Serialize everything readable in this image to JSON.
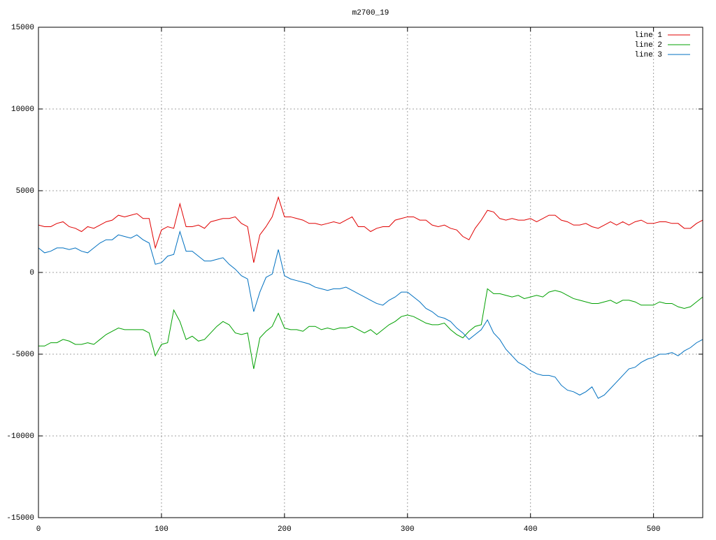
{
  "chart_data": {
    "type": "line",
    "title": "m2700_19",
    "x": [
      0,
      5,
      10,
      15,
      20,
      25,
      30,
      35,
      40,
      45,
      50,
      55,
      60,
      65,
      70,
      75,
      80,
      85,
      90,
      95,
      100,
      105,
      110,
      115,
      120,
      125,
      130,
      135,
      140,
      145,
      150,
      155,
      160,
      165,
      170,
      175,
      180,
      185,
      190,
      195,
      200,
      205,
      210,
      215,
      220,
      225,
      230,
      235,
      240,
      245,
      250,
      255,
      260,
      265,
      270,
      275,
      280,
      285,
      290,
      295,
      300,
      305,
      310,
      315,
      320,
      325,
      330,
      335,
      340,
      345,
      350,
      355,
      360,
      365,
      370,
      375,
      380,
      385,
      390,
      395,
      400,
      405,
      410,
      415,
      420,
      425,
      430,
      435,
      440,
      445,
      450,
      455,
      460,
      465,
      470,
      475,
      480,
      485,
      490,
      495,
      500,
      505,
      510,
      515,
      520,
      525,
      530,
      535,
      540
    ],
    "series": [
      {
        "name": "line 1",
        "color": "#e00000",
        "values": [
          2900,
          2800,
          2800,
          3000,
          3100,
          2800,
          2700,
          2500,
          2800,
          2700,
          2900,
          3100,
          3200,
          3500,
          3400,
          3500,
          3600,
          3300,
          3300,
          1500,
          2600,
          2800,
          2700,
          4200,
          2800,
          2800,
          2900,
          2700,
          3100,
          3200,
          3300,
          3300,
          3400,
          3000,
          2800,
          600,
          2300,
          2800,
          3400,
          4600,
          3400,
          3400,
          3300,
          3200,
          3000,
          3000,
          2900,
          3000,
          3100,
          3000,
          3200,
          3400,
          2800,
          2800,
          2500,
          2700,
          2800,
          2800,
          3200,
          3300,
          3400,
          3400,
          3200,
          3200,
          2900,
          2800,
          2900,
          2700,
          2600,
          2200,
          2000,
          2700,
          3200,
          3800,
          3700,
          3300,
          3200,
          3300,
          3200,
          3200,
          3300,
          3100,
          3300,
          3500,
          3500,
          3200,
          3100,
          2900,
          2900,
          3000,
          2800,
          2700,
          2900,
          3100,
          2900,
          3100,
          2900,
          3100,
          3200,
          3000,
          3000,
          3100,
          3100,
          3000,
          3000,
          2700,
          2700,
          3000,
          3200
        ]
      },
      {
        "name": "line 2",
        "color": "#00a000",
        "values": [
          -4500,
          -4500,
          -4300,
          -4300,
          -4100,
          -4200,
          -4400,
          -4400,
          -4300,
          -4400,
          -4100,
          -3800,
          -3600,
          -3400,
          -3500,
          -3500,
          -3500,
          -3500,
          -3700,
          -5100,
          -4400,
          -4300,
          -2300,
          -3000,
          -4100,
          -3900,
          -4200,
          -4100,
          -3700,
          -3300,
          -3000,
          -3200,
          -3700,
          -3800,
          -3700,
          -5900,
          -4000,
          -3600,
          -3300,
          -2500,
          -3400,
          -3500,
          -3500,
          -3600,
          -3300,
          -3300,
          -3500,
          -3400,
          -3500,
          -3400,
          -3400,
          -3300,
          -3500,
          -3700,
          -3500,
          -3800,
          -3500,
          -3200,
          -3000,
          -2700,
          -2600,
          -2700,
          -2900,
          -3100,
          -3200,
          -3200,
          -3100,
          -3500,
          -3800,
          -4000,
          -3600,
          -3300,
          -3200,
          -1000,
          -1300,
          -1300,
          -1400,
          -1500,
          -1400,
          -1600,
          -1500,
          -1400,
          -1500,
          -1200,
          -1100,
          -1200,
          -1400,
          -1600,
          -1700,
          -1800,
          -1900,
          -1900,
          -1800,
          -1700,
          -1900,
          -1700,
          -1700,
          -1800,
          -2000,
          -2000,
          -2000,
          -1800,
          -1900,
          -1900,
          -2100,
          -2200,
          -2100,
          -1800,
          -1500
        ]
      },
      {
        "name": "line 3",
        "color": "#0070c0",
        "values": [
          1500,
          1200,
          1300,
          1500,
          1500,
          1400,
          1500,
          1300,
          1200,
          1500,
          1800,
          2000,
          2000,
          2300,
          2200,
          2100,
          2300,
          2000,
          1800,
          500,
          600,
          1000,
          1100,
          2500,
          1300,
          1300,
          1000,
          700,
          700,
          800,
          900,
          500,
          200,
          -200,
          -400,
          -2400,
          -1200,
          -300,
          -100,
          1400,
          -200,
          -400,
          -500,
          -600,
          -700,
          -900,
          -1000,
          -1100,
          -1000,
          -1000,
          -900,
          -1100,
          -1300,
          -1500,
          -1700,
          -1900,
          -2000,
          -1700,
          -1500,
          -1200,
          -1200,
          -1500,
          -1800,
          -2200,
          -2400,
          -2700,
          -2800,
          -3000,
          -3400,
          -3700,
          -4100,
          -3800,
          -3500,
          -2900,
          -3700,
          -4100,
          -4700,
          -5100,
          -5500,
          -5700,
          -6000,
          -6200,
          -6300,
          -6300,
          -6400,
          -6900,
          -7200,
          -7300,
          -7500,
          -7300,
          -7000,
          -7700,
          -7500,
          -7100,
          -6700,
          -6300,
          -5900,
          -5800,
          -5500,
          -5300,
          -5200,
          -5000,
          -5000,
          -4900,
          -5100,
          -4800,
          -4600,
          -4300,
          -4100
        ]
      }
    ],
    "xlim": [
      0,
      540
    ],
    "xticks": [
      0,
      100,
      200,
      300,
      400,
      500
    ],
    "ylim": [
      -15000,
      15000
    ],
    "yticks": [
      -15000,
      -10000,
      -5000,
      0,
      5000,
      10000,
      15000
    ],
    "grid": true,
    "legend": "top-right"
  }
}
